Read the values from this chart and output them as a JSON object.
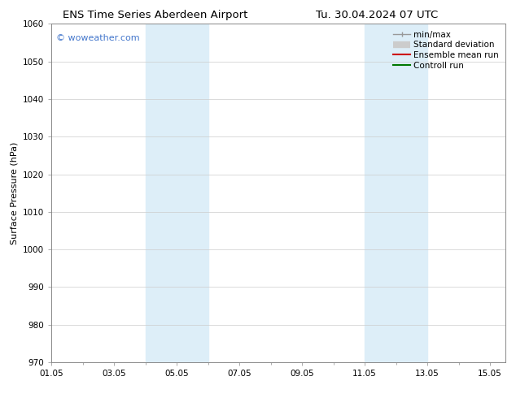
{
  "title_left": "ENS Time Series Aberdeen Airport",
  "title_right": "Tu. 30.04.2024 07 UTC",
  "ylabel": "Surface Pressure (hPa)",
  "ylim": [
    970,
    1060
  ],
  "yticks": [
    970,
    980,
    990,
    1000,
    1010,
    1020,
    1030,
    1040,
    1050,
    1060
  ],
  "xlim": [
    0,
    14.5
  ],
  "xtick_labels": [
    "01.05",
    "03.05",
    "05.05",
    "07.05",
    "09.05",
    "11.05",
    "13.05",
    "15.05"
  ],
  "xtick_positions": [
    0,
    2,
    4,
    6,
    8,
    10,
    12,
    14
  ],
  "shaded_bands": [
    {
      "x_start": 3.0,
      "x_end": 5.0,
      "color": "#ddeef8"
    },
    {
      "x_start": 10.0,
      "x_end": 12.0,
      "color": "#ddeef8"
    }
  ],
  "watermark_text": "© woweather.com",
  "watermark_color": "#4477cc",
  "bg_color": "#ffffff",
  "grid_color": "#cccccc",
  "title_fontsize": 9.5,
  "axis_label_fontsize": 8,
  "tick_fontsize": 7.5,
  "legend_fontsize": 7.5
}
